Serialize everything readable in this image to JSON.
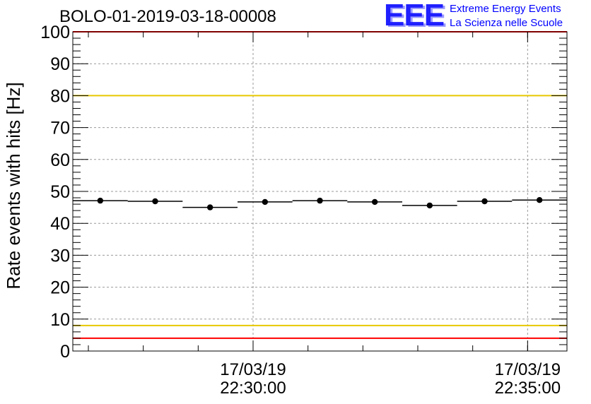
{
  "header": {
    "title": "BOLO-01-2019-03-18-00008",
    "logo_mark": "EEE",
    "logo_line1": "Extreme Energy Events",
    "logo_line2": "La Scienza nelle Scuole"
  },
  "chart_data": {
    "type": "scatter",
    "title": "BOLO-01-2019-03-18-00008",
    "xlabel": "",
    "ylabel": "Rate events with hits [Hz]",
    "ylim": [
      0,
      100
    ],
    "yticks": [
      0,
      10,
      20,
      30,
      40,
      50,
      60,
      70,
      80,
      90,
      100
    ],
    "xlim": [
      "17/03/19 22:26:43",
      "17/03/19 22:35:43"
    ],
    "xticks": [
      {
        "date": "17/03/19",
        "time": "22:30:00"
      },
      {
        "date": "17/03/19",
        "time": "22:35:00"
      }
    ],
    "grid": true,
    "series": [
      {
        "x": [
          "22:27:13",
          "22:28:13",
          "22:29:13",
          "22:30:13",
          "22:31:13",
          "22:32:13",
          "22:33:13",
          "22:34:13",
          "22:35:13"
        ],
        "x_halfwidth_seconds": 30,
        "values": [
          47.1,
          46.9,
          45.0,
          46.7,
          47.1,
          46.7,
          45.6,
          46.9,
          47.3
        ]
      }
    ],
    "reference_lines": [
      {
        "y": 100,
        "color": "#ff0000"
      },
      {
        "y": 80,
        "color": "#e8c800"
      },
      {
        "y": 8,
        "color": "#e8c800"
      },
      {
        "y": 4,
        "color": "#ff0000"
      }
    ]
  }
}
